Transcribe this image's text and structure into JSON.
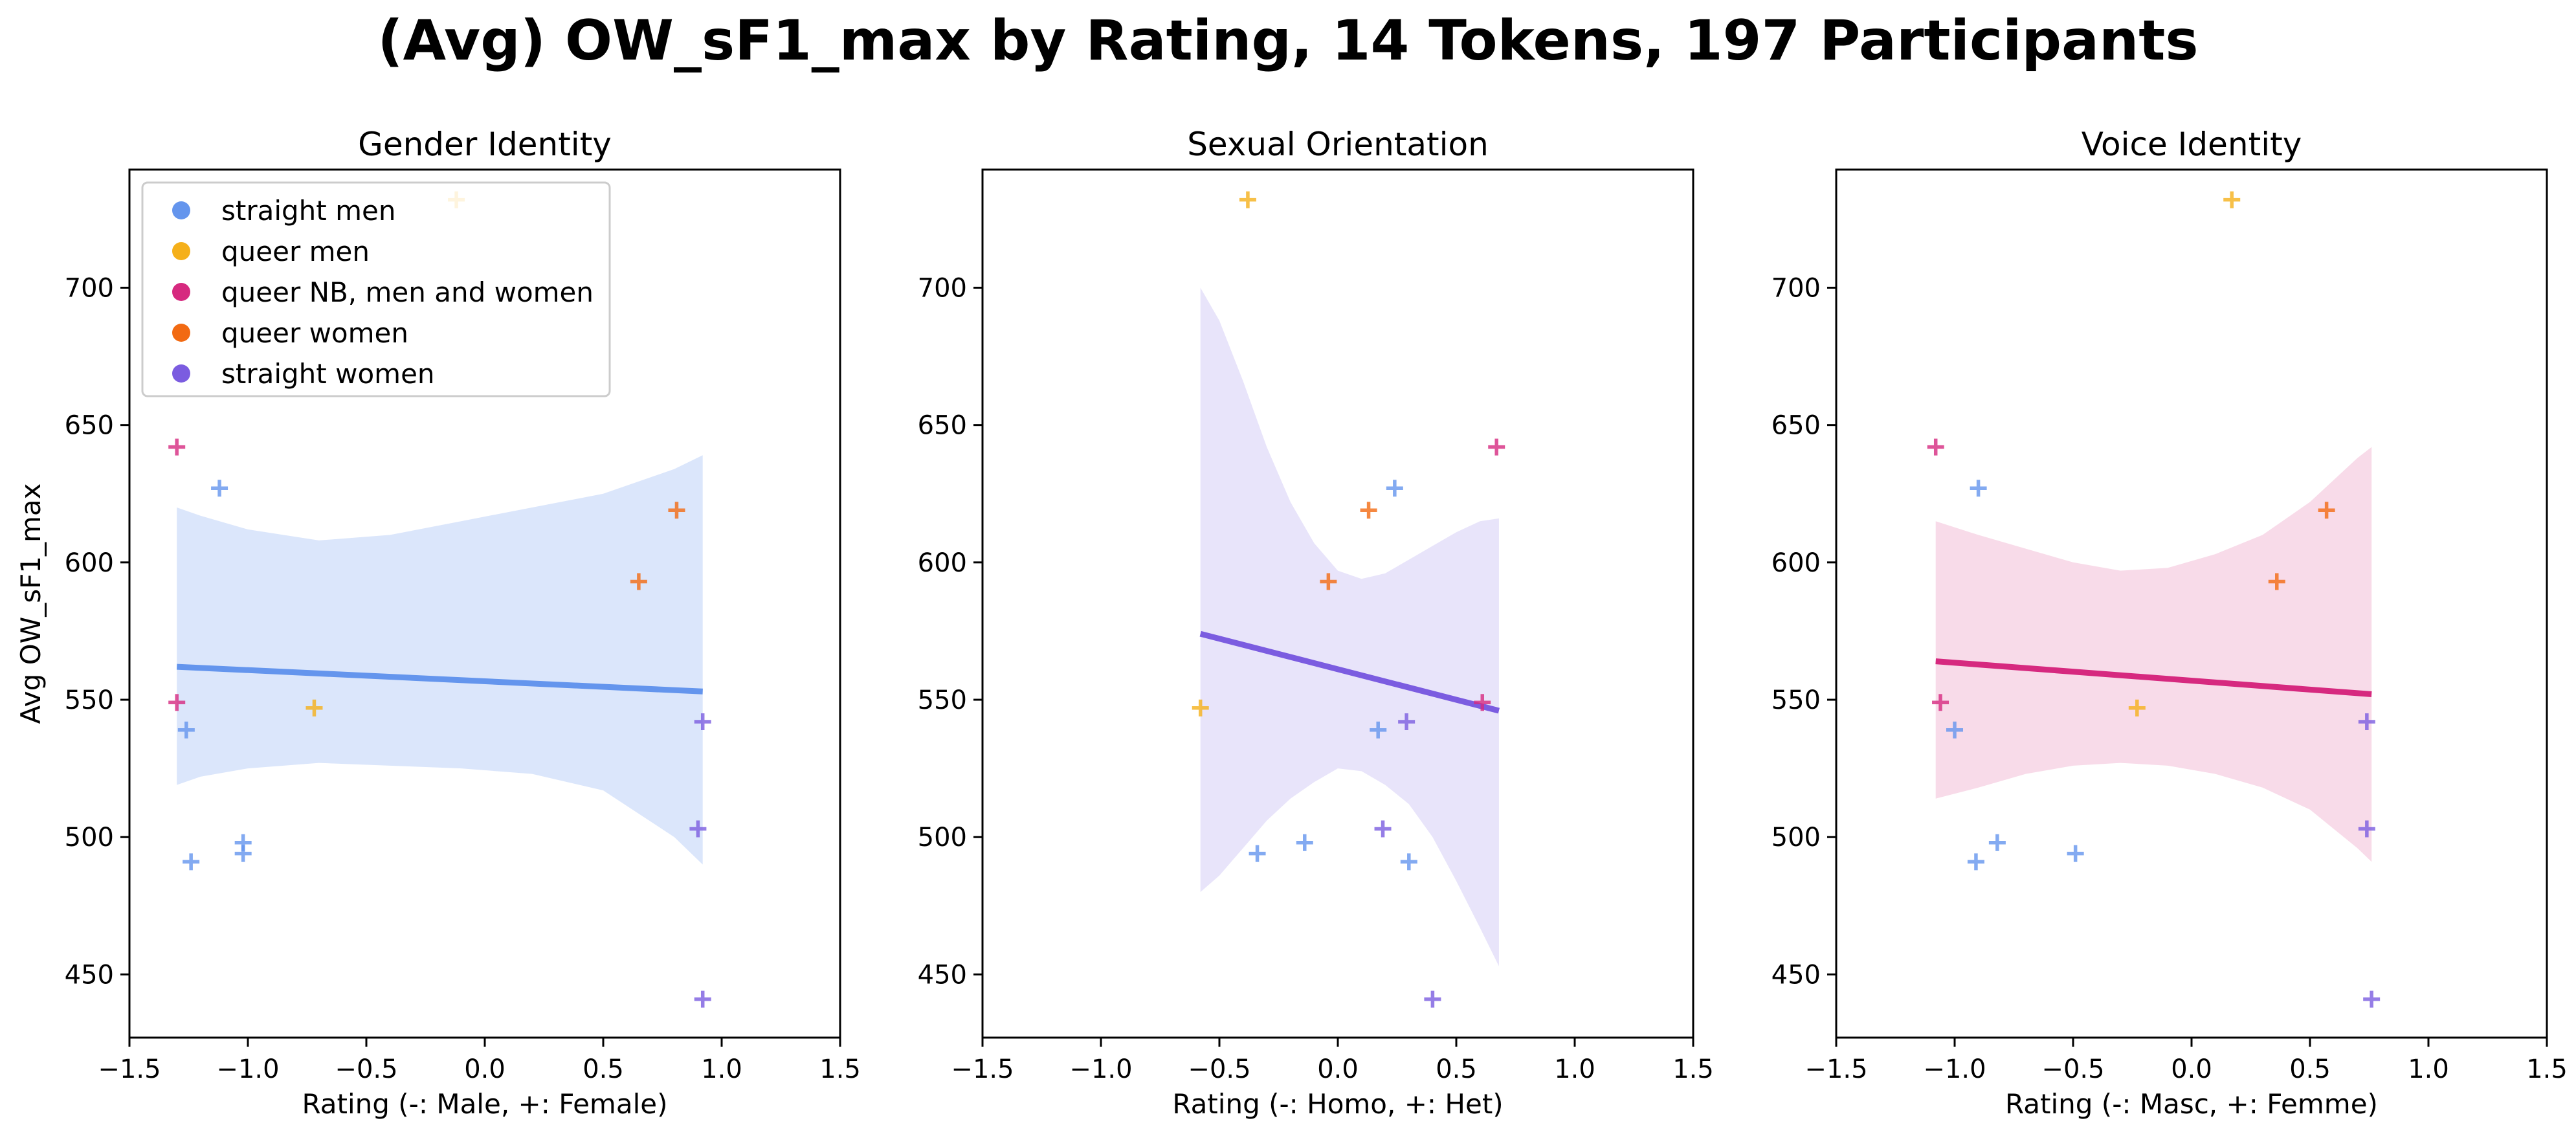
{
  "chart_data": {
    "title": "(Avg) OW_sF1_max by Rating, 14 Tokens, 197 Participants",
    "ylabel": "Avg OW_sF1_max",
    "xlim": [
      -1.5,
      1.5
    ],
    "ylim": [
      427,
      743
    ],
    "xticks": [
      "−1.5",
      "−1.0",
      "−0.5",
      "0.0",
      "0.5",
      "1.0",
      "1.5"
    ],
    "yticks": [
      "450",
      "500",
      "550",
      "600",
      "650",
      "700"
    ],
    "legend": {
      "placement": "top-left",
      "entries": [
        {
          "name": "straight men",
          "color": "#6495ED"
        },
        {
          "name": "queer men",
          "color": "#F5B01A"
        },
        {
          "name": "queer NB, men and women",
          "color": "#D6297F"
        },
        {
          "name": "queer women",
          "color": "#F26A12"
        },
        {
          "name": "straight women",
          "color": "#7B5CE0"
        }
      ]
    },
    "panels": [
      {
        "title": "Gender Identity",
        "xlabel": "Rating (-: Male, +: Female)",
        "type": "scatter",
        "fit_color": "#6495ED",
        "band_color": "#dbe6fb",
        "fit": {
          "x": [
            -1.3,
            0.92
          ],
          "y": [
            562,
            553
          ]
        },
        "band": {
          "x": [
            -1.3,
            -1.2,
            -1.0,
            -0.7,
            -0.4,
            -0.1,
            0.2,
            0.5,
            0.8,
            0.92
          ],
          "upper": [
            620,
            617,
            612,
            608,
            610,
            615,
            620,
            625,
            634,
            639
          ],
          "lower": [
            519,
            522,
            525,
            527,
            526,
            525,
            523,
            517,
            500,
            490
          ]
        },
        "points": [
          {
            "x": -1.3,
            "y": 642,
            "group": 2
          },
          {
            "x": -1.3,
            "y": 549,
            "group": 2
          },
          {
            "x": -1.26,
            "y": 539,
            "group": 0
          },
          {
            "x": -1.24,
            "y": 491,
            "group": 0
          },
          {
            "x": -1.12,
            "y": 627,
            "group": 0
          },
          {
            "x": -1.02,
            "y": 498,
            "group": 0
          },
          {
            "x": -1.02,
            "y": 494,
            "group": 0
          },
          {
            "x": -0.72,
            "y": 547,
            "group": 1
          },
          {
            "x": -0.12,
            "y": 732,
            "group": 1
          },
          {
            "x": 0.65,
            "y": 593,
            "group": 3
          },
          {
            "x": 0.81,
            "y": 619,
            "group": 3
          },
          {
            "x": 0.9,
            "y": 503,
            "group": 4
          },
          {
            "x": 0.92,
            "y": 542,
            "group": 4
          },
          {
            "x": 0.92,
            "y": 441,
            "group": 4
          }
        ]
      },
      {
        "title": "Sexual Orientation",
        "xlabel": "Rating (-: Homo, +: Het)",
        "type": "scatter",
        "fit_color": "#7B5CE0",
        "band_color": "#e8e4fa",
        "fit": {
          "x": [
            -0.58,
            0.68
          ],
          "y": [
            574,
            546
          ]
        },
        "band": {
          "x": [
            -0.58,
            -0.5,
            -0.4,
            -0.3,
            -0.2,
            -0.1,
            0.0,
            0.1,
            0.2,
            0.3,
            0.4,
            0.5,
            0.6,
            0.68
          ],
          "upper": [
            700,
            688,
            666,
            642,
            622,
            607,
            597,
            594,
            596,
            601,
            606,
            611,
            615,
            616
          ],
          "lower": [
            480,
            486,
            496,
            506,
            514,
            520,
            525,
            524,
            519,
            512,
            500,
            484,
            467,
            453
          ]
        },
        "points": [
          {
            "x": -0.38,
            "y": 732,
            "group": 1
          },
          {
            "x": -0.58,
            "y": 547,
            "group": 1
          },
          {
            "x": -0.34,
            "y": 494,
            "group": 0
          },
          {
            "x": -0.14,
            "y": 498,
            "group": 0
          },
          {
            "x": -0.04,
            "y": 593,
            "group": 3
          },
          {
            "x": 0.13,
            "y": 619,
            "group": 3
          },
          {
            "x": 0.17,
            "y": 539,
            "group": 0
          },
          {
            "x": 0.19,
            "y": 503,
            "group": 4
          },
          {
            "x": 0.24,
            "y": 627,
            "group": 0
          },
          {
            "x": 0.29,
            "y": 542,
            "group": 4
          },
          {
            "x": 0.3,
            "y": 491,
            "group": 0
          },
          {
            "x": 0.4,
            "y": 441,
            "group": 4
          },
          {
            "x": 0.61,
            "y": 549,
            "group": 2
          },
          {
            "x": 0.67,
            "y": 642,
            "group": 2
          }
        ]
      },
      {
        "title": "Voice Identity",
        "xlabel": "Rating (-: Masc, +: Femme)",
        "type": "scatter",
        "fit_color": "#D6297F",
        "band_color": "#f8dbe9",
        "fit": {
          "x": [
            -1.08,
            0.76
          ],
          "y": [
            564,
            552
          ]
        },
        "band": {
          "x": [
            -1.08,
            -0.9,
            -0.7,
            -0.5,
            -0.3,
            -0.1,
            0.1,
            0.3,
            0.5,
            0.7,
            0.76
          ],
          "upper": [
            615,
            610,
            605,
            600,
            597,
            598,
            603,
            610,
            622,
            638,
            642
          ],
          "lower": [
            514,
            518,
            523,
            526,
            527,
            526,
            523,
            518,
            510,
            496,
            491
          ]
        },
        "points": [
          {
            "x": -1.08,
            "y": 642,
            "group": 2
          },
          {
            "x": -1.06,
            "y": 549,
            "group": 2
          },
          {
            "x": -1.0,
            "y": 539,
            "group": 0
          },
          {
            "x": -0.9,
            "y": 627,
            "group": 0
          },
          {
            "x": -0.91,
            "y": 491,
            "group": 0
          },
          {
            "x": -0.82,
            "y": 498,
            "group": 0
          },
          {
            "x": -0.49,
            "y": 494,
            "group": 0
          },
          {
            "x": -0.23,
            "y": 547,
            "group": 1
          },
          {
            "x": 0.17,
            "y": 732,
            "group": 1
          },
          {
            "x": 0.36,
            "y": 593,
            "group": 3
          },
          {
            "x": 0.57,
            "y": 619,
            "group": 3
          },
          {
            "x": 0.74,
            "y": 542,
            "group": 4
          },
          {
            "x": 0.74,
            "y": 503,
            "group": 4
          },
          {
            "x": 0.76,
            "y": 441,
            "group": 4
          }
        ]
      }
    ]
  }
}
